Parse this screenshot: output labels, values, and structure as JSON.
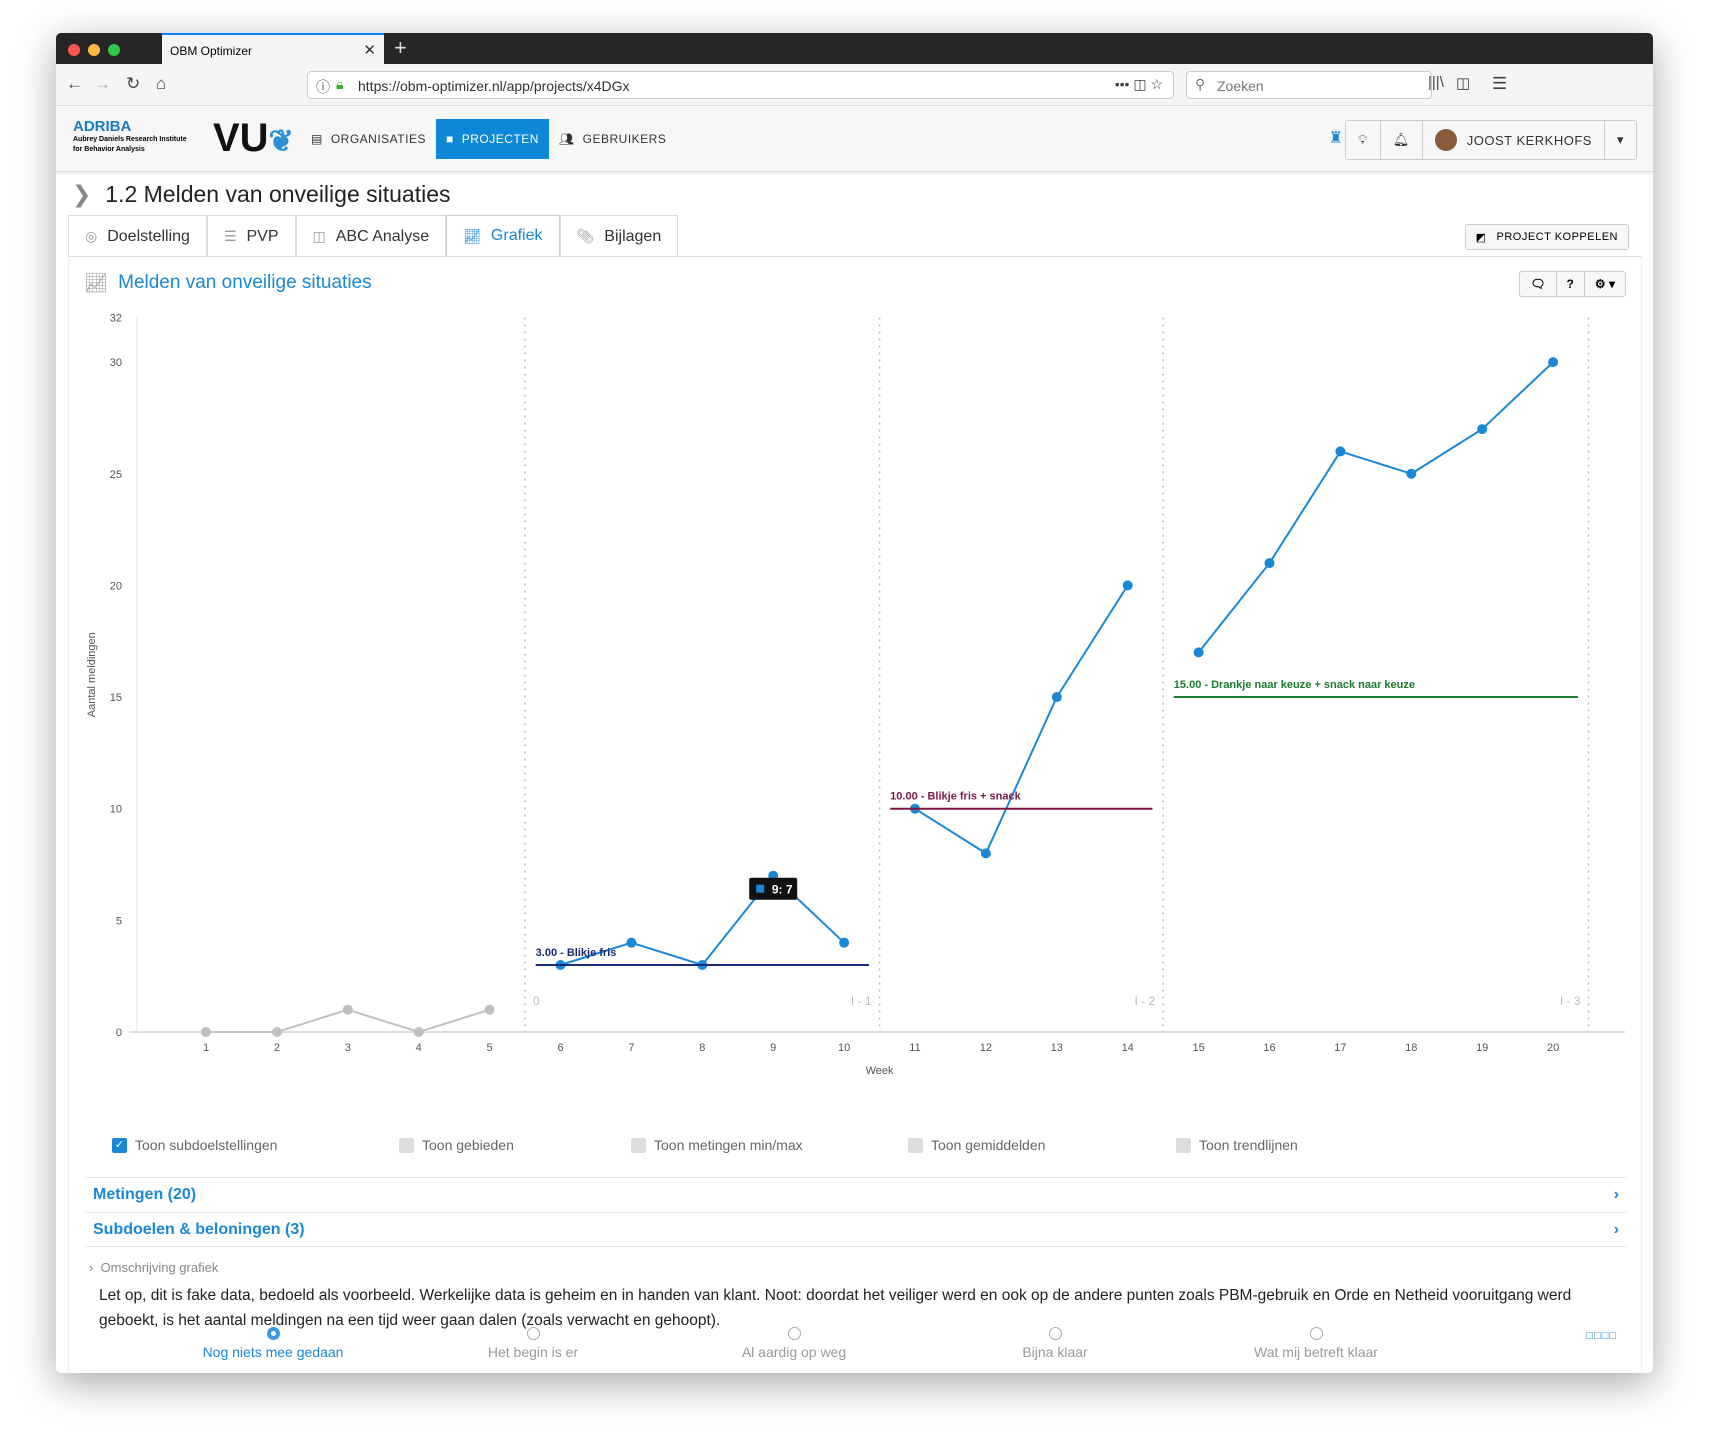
{
  "browser": {
    "tab_title": "OBM Optimizer",
    "url": "https://obm-optimizer.nl/app/projects/x4DGx",
    "search_placeholder": "Zoeken"
  },
  "header": {
    "logo_text": "ADRIBA",
    "logo_sub1": "Aubrey Daniels Research Institute",
    "logo_sub2": "for Behavior Analysis",
    "vu_logo": "VU",
    "menu": [
      {
        "label": "ORGANISATIES",
        "icon": "id-card-icon"
      },
      {
        "label": "PROJECTEN",
        "icon": "folder-icon",
        "active": true
      },
      {
        "label": "GEBRUIKERS",
        "icon": "users-icon"
      }
    ],
    "user_name": "JOOST KERKHOFS"
  },
  "page": {
    "title": "1.2 Melden van onveilige situaties",
    "tabs": [
      {
        "label": "Doelstelling",
        "icon": "target-icon"
      },
      {
        "label": "PVP",
        "icon": "list-icon"
      },
      {
        "label": "ABC Analyse",
        "icon": "columns-icon"
      },
      {
        "label": "Grafiek",
        "icon": "chart-icon",
        "active": true
      },
      {
        "label": "Bijlagen",
        "icon": "paperclip-icon"
      }
    ],
    "koppel_label": "PROJECT KOPPELEN"
  },
  "panel": {
    "title": "Melden van onveilige situaties",
    "help_label": "?"
  },
  "chart_data": {
    "type": "line",
    "xlabel": "Week",
    "ylabel": "Aantal meldingen",
    "ylim": [
      0,
      32
    ],
    "yticks": [
      0,
      5,
      10,
      15,
      20,
      25,
      30,
      32
    ],
    "x": [
      1,
      2,
      3,
      4,
      5,
      6,
      7,
      8,
      9,
      10,
      11,
      12,
      13,
      14,
      15,
      16,
      17,
      18,
      19,
      20
    ],
    "phases": [
      {
        "label": "0",
        "weeks": [
          1,
          5
        ],
        "values": [
          0,
          0,
          1,
          0,
          1
        ],
        "color": "#c0c0c0"
      },
      {
        "label": "I - 1",
        "weeks": [
          6,
          10
        ],
        "values": [
          3,
          4,
          3,
          7,
          4
        ],
        "color": "#1a88d6"
      },
      {
        "label": "I - 2",
        "weeks": [
          11,
          14
        ],
        "values": [
          10,
          8,
          15,
          20
        ],
        "color": "#1a88d6"
      },
      {
        "label": "I - 3",
        "weeks": [
          15,
          20
        ],
        "values": [
          17,
          21,
          26,
          25,
          27,
          30
        ],
        "color": "#1a88d6"
      }
    ],
    "subgoals": [
      {
        "label": "3.00 - Blikje fris",
        "value": 3,
        "weeks": [
          6,
          10
        ],
        "color": "#1b2a7a"
      },
      {
        "label": "10.00 - Blikje fris + snack",
        "value": 10,
        "weeks": [
          11,
          14
        ],
        "color": "#7a1846"
      },
      {
        "label": "15.00 - Drankje naar keuze + snack naar keuze",
        "value": 15,
        "weeks": [
          15,
          20
        ],
        "color": "#1e7a2e"
      }
    ],
    "tooltip": "9: 7",
    "grid": false
  },
  "checks": [
    {
      "label": "Toon subdoelstellingen",
      "checked": true
    },
    {
      "label": "Toon gebieden",
      "checked": false
    },
    {
      "label": "Toon metingen min/max",
      "checked": false
    },
    {
      "label": "Toon gemiddelden",
      "checked": false
    },
    {
      "label": "Toon trendlijnen",
      "checked": false
    }
  ],
  "sections": {
    "metingen": "Metingen (20)",
    "subdoelen": "Subdoelen & beloningen (3)",
    "omschrijving": "Omschrijving grafiek",
    "description": "Let op, dit is fake data, bedoeld als voorbeeld. Werkelijke data is geheim en in handen van klant. Noot: doordat het veiliger werd en ook op de andere punten zoals PBM-gebruik en Orde en Netheid vooruitgang werd geboekt, is het aantal meldingen na een tijd weer gaan dalen (zoals verwacht en gehoopt)."
  },
  "progress": {
    "options": [
      "Nog niets mee gedaan",
      "Het begin is er",
      "Al aardig op weg",
      "Bijna klaar",
      "Wat mij betreft klaar"
    ],
    "selected": 0,
    "squares": "□□□□"
  }
}
